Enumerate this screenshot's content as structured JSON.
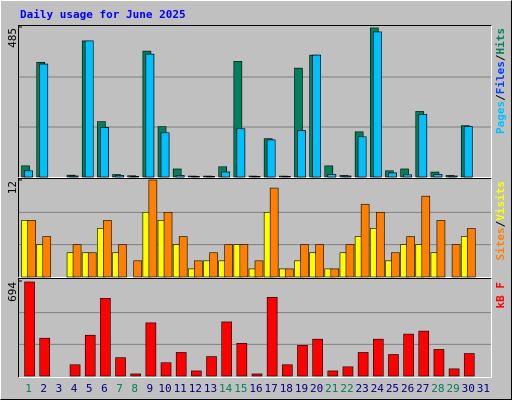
{
  "title": "Daily usage for June 2025",
  "legend_separator": "/",
  "chart_data": [
    {
      "type": "bar",
      "ylim": [
        0,
        485
      ],
      "yticks": [
        485
      ],
      "series": [
        {
          "name": "Hits",
          "color": "#00805c",
          "values": [
            36,
            371,
            0,
            6,
            440,
            179,
            8,
            4,
            407,
            163,
            26,
            3,
            3,
            33,
            374,
            3,
            124,
            3,
            352,
            394,
            36,
            5,
            146,
            482,
            20,
            26,
            212,
            16,
            5,
            166,
            0
          ]
        },
        {
          "name": "Files",
          "color": "#0040ff",
          "values": [
            20,
            365,
            0,
            3,
            440,
            160,
            5,
            2,
            397,
            143,
            5,
            2,
            2,
            16,
            156,
            2,
            120,
            2,
            150,
            394,
            8,
            3,
            130,
            469,
            13,
            7,
            202,
            8,
            3,
            163,
            0
          ]
        },
        {
          "name": "Pages",
          "color": "#00c0ff",
          "values": [
            20,
            365,
            0,
            3,
            440,
            160,
            5,
            2,
            397,
            143,
            5,
            2,
            2,
            16,
            156,
            2,
            120,
            2,
            150,
            394,
            8,
            3,
            130,
            469,
            13,
            7,
            202,
            8,
            3,
            163,
            0
          ]
        }
      ]
    },
    {
      "type": "bar",
      "ylim": [
        0,
        12
      ],
      "yticks": [
        12
      ],
      "series": [
        {
          "name": "Visits",
          "color": "#ffff00",
          "values": [
            7,
            4,
            0,
            3,
            3,
            6,
            3,
            0,
            8,
            7,
            4,
            1,
            2,
            2,
            4,
            1,
            8,
            1,
            2,
            3,
            1,
            3,
            5,
            6,
            2,
            4,
            4,
            3,
            0,
            5,
            0
          ]
        },
        {
          "name": "Sites",
          "color": "#ff8000",
          "values": [
            7,
            5,
            0,
            4,
            3,
            7,
            4,
            2,
            12,
            8,
            5,
            2,
            3,
            4,
            4,
            2,
            11,
            1,
            4,
            4,
            1,
            4,
            9,
            8,
            3,
            5,
            10,
            7,
            4,
            6,
            0
          ]
        }
      ]
    },
    {
      "type": "bar",
      "ylim": [
        0,
        694
      ],
      "yticks": [
        694
      ],
      "categories": [
        "1",
        "2",
        "3",
        "4",
        "5",
        "6",
        "7",
        "8",
        "9",
        "10",
        "11",
        "12",
        "13",
        "14",
        "15",
        "16",
        "17",
        "18",
        "19",
        "20",
        "21",
        "22",
        "23",
        "24",
        "25",
        "26",
        "27",
        "28",
        "29",
        "30",
        "31"
      ],
      "category_colors": [
        "#00805c",
        "#000080",
        "#000080",
        "#000080",
        "#000080",
        "#000080",
        "#00805c",
        "#00805c",
        "#000080",
        "#000080",
        "#000080",
        "#000080",
        "#000080",
        "#00805c",
        "#00805c",
        "#000080",
        "#000080",
        "#000080",
        "#000080",
        "#000080",
        "#00805c",
        "#00805c",
        "#000080",
        "#000080",
        "#000080",
        "#000080",
        "#000080",
        "#00805c",
        "#00805c",
        "#000080",
        "#000080"
      ],
      "series": [
        {
          "name": "kB F",
          "color": "#ff0000",
          "values": [
            687,
            276,
            0,
            82,
            298,
            567,
            134,
            15,
            388,
            97,
            172,
            37,
            142,
            395,
            239,
            15,
            575,
            82,
            224,
            269,
            37,
            67,
            172,
            269,
            157,
            306,
            328,
            194,
            52,
            164,
            0
          ]
        }
      ]
    }
  ]
}
